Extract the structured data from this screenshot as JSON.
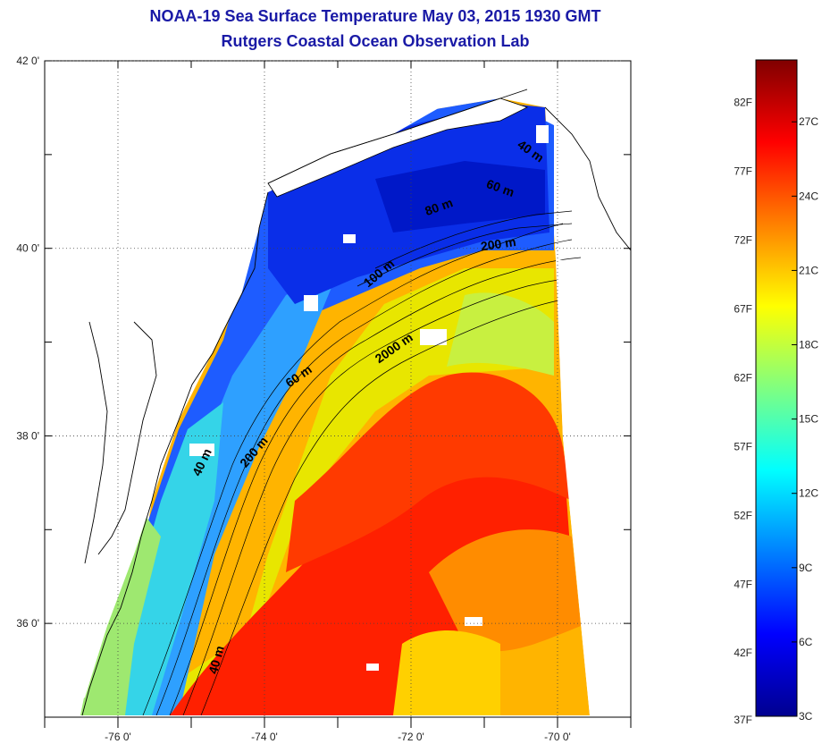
{
  "title": {
    "line1": "NOAA-19 Sea Surface Temperature May 03, 2015 1930 GMT",
    "line2": "Rutgers Coastal Ocean Observation Lab"
  },
  "axes": {
    "lat_labels": [
      {
        "value": 42,
        "text": "42 0'"
      },
      {
        "value": 40,
        "text": "40 0'"
      },
      {
        "value": 38,
        "text": "38 0'"
      },
      {
        "value": 36,
        "text": "36 0'"
      }
    ],
    "lon_labels": [
      {
        "value": -76,
        "text": "-76 0'"
      },
      {
        "value": -74,
        "text": "-74 0'"
      },
      {
        "value": -72,
        "text": "-72 0'"
      },
      {
        "value": -70,
        "text": "-70 0'"
      }
    ],
    "lat_range": [
      35,
      42
    ],
    "lon_range": [
      -77,
      -69
    ]
  },
  "contour_labels": [
    {
      "text": "40 m",
      "lon": -70.4,
      "lat": 41.0,
      "rot": 35
    },
    {
      "text": "60 m",
      "lon": -70.8,
      "lat": 40.6,
      "rot": 20
    },
    {
      "text": "80 m",
      "lon": -71.6,
      "lat": 40.4,
      "rot": -20
    },
    {
      "text": "200 m",
      "lon": -70.8,
      "lat": 40.0,
      "rot": -8
    },
    {
      "text": "100 m",
      "lon": -72.4,
      "lat": 39.7,
      "rot": -40
    },
    {
      "text": "2000 m",
      "lon": -72.2,
      "lat": 38.9,
      "rot": -35
    },
    {
      "text": "60 m",
      "lon": -73.5,
      "lat": 38.6,
      "rot": -35
    },
    {
      "text": "200 m",
      "lon": -74.1,
      "lat": 37.8,
      "rot": -50
    },
    {
      "text": "40 m",
      "lon": -74.8,
      "lat": 37.7,
      "rot": -65
    },
    {
      "text": "40 m",
      "lon": -74.6,
      "lat": 35.6,
      "rot": -75
    }
  ],
  "colorbar": {
    "f_labels": [
      {
        "text": "82F",
        "temp_f": 82
      },
      {
        "text": "77F",
        "temp_f": 77
      },
      {
        "text": "72F",
        "temp_f": 72
      },
      {
        "text": "67F",
        "temp_f": 67
      },
      {
        "text": "62F",
        "temp_f": 62
      },
      {
        "text": "57F",
        "temp_f": 57
      },
      {
        "text": "52F",
        "temp_f": 52
      },
      {
        "text": "47F",
        "temp_f": 47
      },
      {
        "text": "42F",
        "temp_f": 42
      },
      {
        "text": "37F",
        "temp_f": 37
      }
    ],
    "c_labels": [
      {
        "text": "27C",
        "temp_c": 27
      },
      {
        "text": "24C",
        "temp_c": 24
      },
      {
        "text": "21C",
        "temp_c": 21
      },
      {
        "text": "18C",
        "temp_c": 18
      },
      {
        "text": "15C",
        "temp_c": 15
      },
      {
        "text": "12C",
        "temp_c": 12
      },
      {
        "text": "9C",
        "temp_c": 9
      },
      {
        "text": "6C",
        "temp_c": 6
      },
      {
        "text": "3C",
        "temp_c": 3
      }
    ],
    "range_c": [
      3,
      29.5
    ],
    "colors": [
      "#00008f",
      "#0000ff",
      "#0080ff",
      "#00ffff",
      "#80ff80",
      "#ffff00",
      "#ff8000",
      "#ff0000",
      "#800000"
    ]
  }
}
